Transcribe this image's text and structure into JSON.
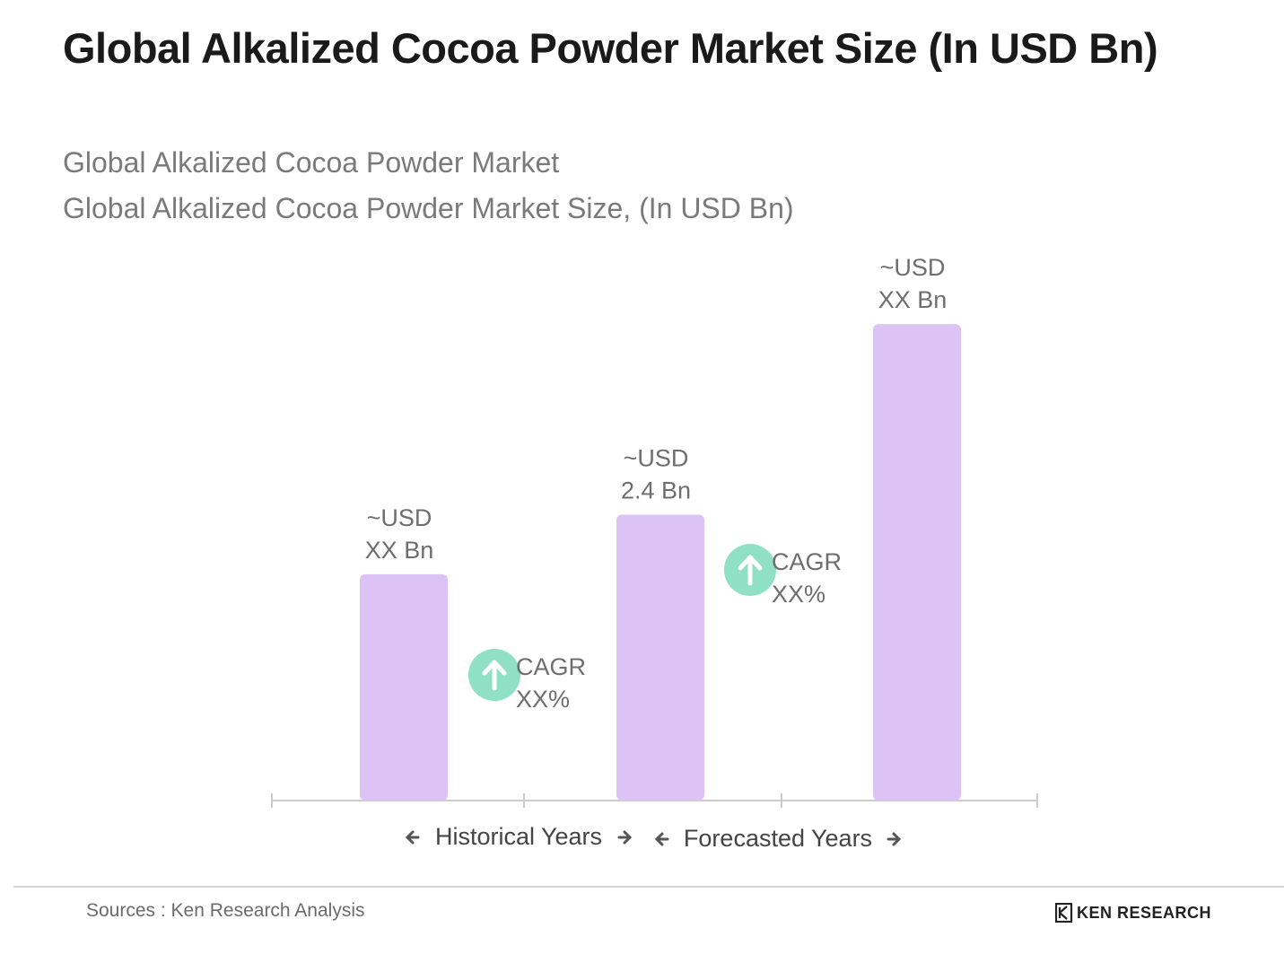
{
  "header": {
    "title": "Global Alkalized Cocoa Powder Market Size (In USD Bn)",
    "subtitle_1": "Global Alkalized Cocoa Powder Market",
    "subtitle_2": "Global Alkalized Cocoa Powder Market Size, (In USD Bn)"
  },
  "chart_data": {
    "type": "bar",
    "categories": [
      "",
      "",
      ""
    ],
    "series": [
      {
        "values": [
          1.9,
          2.4,
          4.0
        ]
      }
    ],
    "data_labels": [
      [
        "~USD",
        "XX Bn"
      ],
      [
        "~USD",
        "2.4 Bn"
      ],
      [
        "~USD",
        "XX Bn"
      ]
    ],
    "cagr_labels": [
      [
        "CAGR",
        "XX%"
      ],
      [
        "CAGR",
        "XX%"
      ]
    ],
    "period_labels": {
      "historical": "Historical Years",
      "forecast": "Forecasted Years"
    },
    "ylim": [
      0,
      4.4
    ],
    "bar_color": "#dcc2f5",
    "cagr_icon_color": "#8fe0c4",
    "axis_color": "#cccccc",
    "label_color": "#6e6e6e",
    "grid": false,
    "legend": "none"
  },
  "footer": {
    "source": "Sources : Ken Research Analysis",
    "logo_text": "KEN RESEARCH"
  }
}
